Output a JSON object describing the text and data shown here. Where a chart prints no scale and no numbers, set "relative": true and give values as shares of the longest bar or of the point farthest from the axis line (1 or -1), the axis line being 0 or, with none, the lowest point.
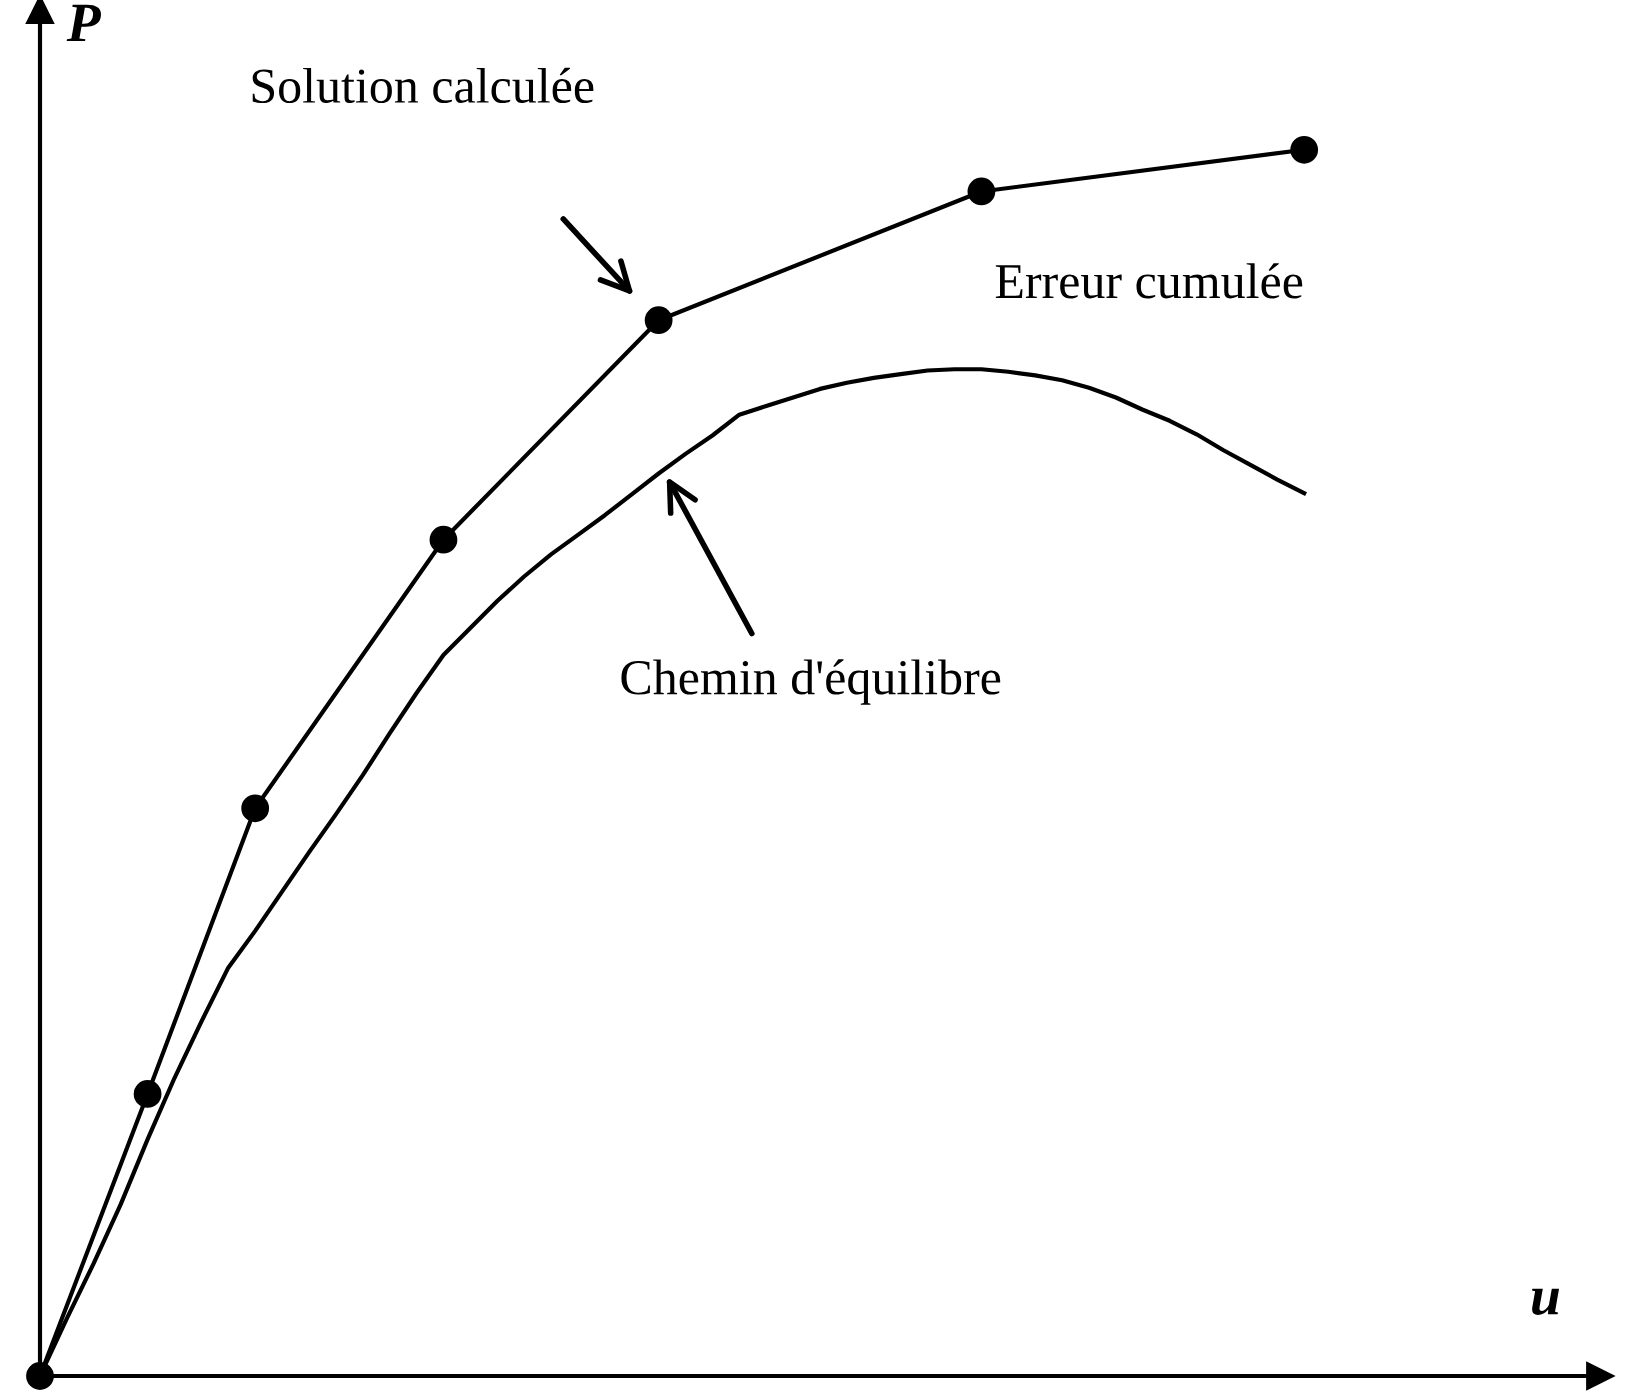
{
  "chart_data": {
    "type": "line",
    "relative": true,
    "xlabel": "u",
    "ylabel": "P",
    "legend": false,
    "categories": [
      null,
      null,
      null,
      null,
      null,
      null,
      null,
      null,
      null,
      null,
      null,
      null,
      null,
      null,
      null,
      null,
      null,
      null,
      null,
      null,
      null,
      null,
      null,
      null,
      null,
      null,
      null,
      null,
      null,
      null,
      null,
      null,
      null,
      null,
      null,
      null,
      null,
      null,
      null,
      null,
      null,
      null,
      null,
      null,
      null,
      null,
      null,
      null
    ],
    "series": [
      {
        "color": "#000000",
        "marker": "circle",
        "values": [
          0,
          null,
          null,
          null,
          0.23,
          null,
          null,
          null,
          0.463,
          null,
          null,
          null,
          null,
          null,
          null,
          0.682,
          null,
          null,
          null,
          null,
          null,
          null,
          null,
          0.861,
          null,
          null,
          null,
          null,
          null,
          null,
          null,
          null,
          null,
          null,
          null,
          0.966,
          null,
          null,
          null,
          null,
          null,
          null,
          null,
          null,
          null,
          null,
          null,
          1.0
        ]
      },
      {
        "color": "#000000",
        "marker": "none",
        "values": [
          0,
          0.047,
          0.092,
          0.14,
          0.193,
          0.243,
          0.289,
          0.333,
          0.363,
          0.395,
          0.427,
          0.458,
          0.49,
          0.524,
          0.557,
          0.588,
          0.61,
          0.632,
          0.652,
          0.67,
          0.686,
          0.702,
          0.719,
          0.736,
          0.752,
          0.767,
          0.784,
          0.791,
          0.798,
          0.805,
          0.81,
          0.814,
          0.817,
          0.82,
          0.821,
          0.821,
          0.819,
          0.816,
          0.812,
          0.806,
          0.798,
          0.788,
          0.779,
          0.768,
          0.755,
          0.743,
          0.731,
          0.72
        ]
      }
    ],
    "annotations": [
      "Solution calculée",
      "Chemin d'équilibre",
      "Erreur cumulée"
    ]
  }
}
